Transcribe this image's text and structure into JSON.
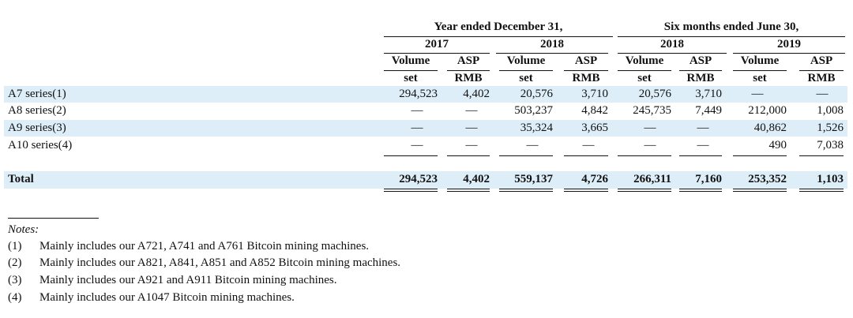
{
  "header": {
    "group1": "Year ended December 31,",
    "group2": "Six months ended June 30,",
    "years": [
      "2017",
      "2018",
      "2018",
      "2019"
    ],
    "sub_labels": [
      "Volume",
      "ASP",
      "Volume",
      "ASP",
      "Volume",
      "ASP",
      "Volume",
      "ASP"
    ],
    "units": [
      "set",
      "RMB",
      "set",
      "RMB",
      "set",
      "RMB",
      "set",
      "RMB"
    ]
  },
  "rows": [
    {
      "label": "A7 series(1)",
      "cells": [
        "294,523",
        "4,402",
        "20,576",
        "3,710",
        "20,576",
        "3,710",
        "—",
        "—"
      ]
    },
    {
      "label": "A8 series(2)",
      "cells": [
        "—",
        "—",
        "503,237",
        "4,842",
        "245,735",
        "7,449",
        "212,000",
        "1,008"
      ]
    },
    {
      "label": "A9 series(3)",
      "cells": [
        "—",
        "—",
        "35,324",
        "3,665",
        "—",
        "—",
        "40,862",
        "1,526"
      ]
    },
    {
      "label": "A10 series(4)",
      "cells": [
        "—",
        "—",
        "—",
        "—",
        "—",
        "—",
        "490",
        "7,038"
      ]
    }
  ],
  "total": {
    "label": "Total",
    "cells": [
      "294,523",
      "4,402",
      "559,137",
      "4,726",
      "266,311",
      "7,160",
      "253,352",
      "1,103"
    ]
  },
  "notes": {
    "title": "Notes:",
    "items": [
      {
        "num": "(1)",
        "text": "Mainly includes our A721, A741 and A761 Bitcoin mining machines."
      },
      {
        "num": "(2)",
        "text": "Mainly includes our A821, A841, A851 and A852 Bitcoin mining machines."
      },
      {
        "num": "(3)",
        "text": "Mainly includes our A921 and A911 Bitcoin mining machines."
      },
      {
        "num": "(4)",
        "text": "Mainly includes our A1047 Bitcoin mining machines."
      }
    ]
  }
}
